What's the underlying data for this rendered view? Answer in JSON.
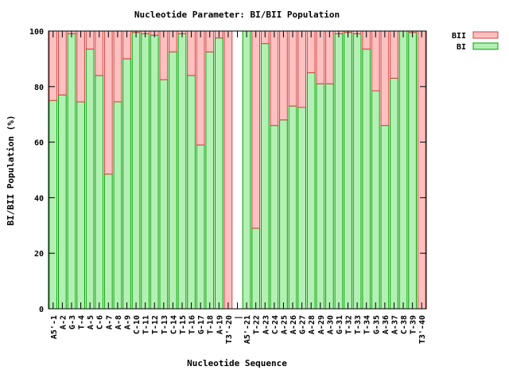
{
  "chart_data": {
    "type": "bar",
    "stacked": true,
    "title": "Nucleotide Parameter: BI/BII Population",
    "xlabel": "Nucleotide Sequence",
    "ylabel": "BI/BII Population (%)",
    "ylim": [
      0,
      100
    ],
    "yticks": [
      0,
      20,
      40,
      60,
      80,
      100
    ],
    "grid": false,
    "legend_position": "top-right",
    "categories": [
      "A5'-1",
      "A-2",
      "G-3",
      "T-4",
      "A-5",
      "C-6",
      "A-7",
      "A-8",
      "A-9",
      "C-10",
      "T-11",
      "T-12",
      "T-13",
      "C-14",
      "T-15",
      "T-16",
      "G-17",
      "T-18",
      "A-19",
      "T3'-20",
      "|",
      "A5'-21",
      "T-22",
      "A-23",
      "C-24",
      "A-25",
      "A-26",
      "G-27",
      "A-28",
      "A-29",
      "A-30",
      "G-31",
      "T-32",
      "T-33",
      "T-34",
      "G-35",
      "A-36",
      "A-37",
      "C-38",
      "T-39",
      "T3'-40"
    ],
    "series": [
      {
        "name": "BI",
        "color": "#b3f0b3",
        "edge": "#00a000",
        "values": [
          75,
          77,
          99,
          74.5,
          93.5,
          84,
          48.5,
          74.5,
          90,
          99.5,
          99,
          98.5,
          82.5,
          92.5,
          99,
          84,
          59,
          92.5,
          97.5,
          0,
          null,
          100,
          29,
          95.5,
          66,
          68,
          73,
          72.5,
          85,
          81,
          81,
          99,
          99.5,
          99,
          93.5,
          78.5,
          66,
          83,
          100,
          99.5,
          0
        ]
      },
      {
        "name": "BII",
        "color": "#ffc0c0",
        "edge": "#d04040",
        "values": [
          25,
          23,
          1,
          25.5,
          6.5,
          16,
          51.5,
          25.5,
          10,
          0.5,
          1,
          1.5,
          17.5,
          7.5,
          1,
          16,
          41,
          7.5,
          2.5,
          100,
          null,
          0,
          71,
          4.5,
          34,
          32,
          27,
          27.5,
          15,
          19,
          19,
          1,
          0.5,
          1,
          6.5,
          21.5,
          34,
          17,
          0,
          0.5,
          100
        ]
      }
    ]
  }
}
